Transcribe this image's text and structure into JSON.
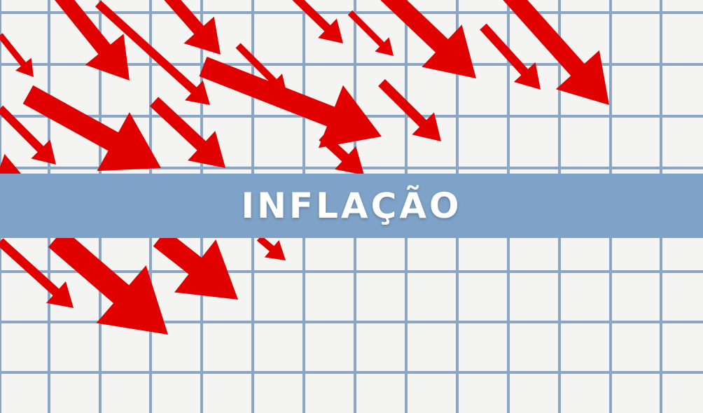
{
  "banner": {
    "title": "INFLAÇÃO"
  },
  "colors": {
    "background": "#f4f4f2",
    "grid": "#8aa6c4",
    "arrow": "#e00000",
    "banner": "#7fa3c8",
    "title": "#ffffff"
  }
}
